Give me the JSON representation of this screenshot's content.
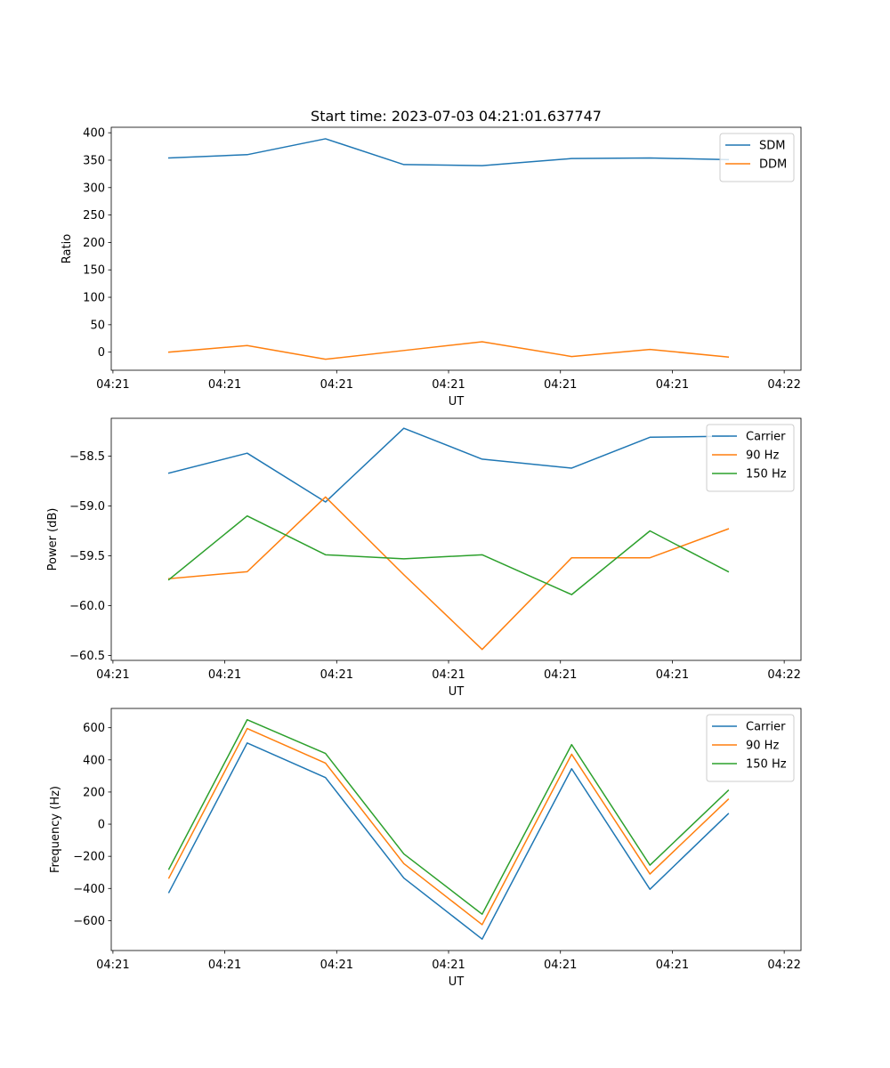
{
  "title": "Start time: 2023-07-03 04:21:01.637747",
  "x_tick_labels": [
    "04:21",
    "04:21",
    "04:21",
    "04:21",
    "04:21",
    "04:21",
    "04:22"
  ],
  "chart_data": [
    {
      "type": "line",
      "xlabel": "UT",
      "ylabel": "Ratio",
      "x": [
        0.5,
        1.2,
        1.9,
        2.6,
        3.3,
        4.1,
        4.8,
        5.5
      ],
      "xlim": [
        -0.015,
        6.15
      ],
      "ylim": [
        -33,
        410
      ],
      "yticks": [
        0,
        50,
        100,
        150,
        200,
        250,
        300,
        350,
        400
      ],
      "ytick_labels": [
        "0",
        "50",
        "100",
        "150",
        "200",
        "250",
        "300",
        "350",
        "400"
      ],
      "legend_position": "upper right",
      "series": [
        {
          "name": "SDM",
          "color": "#1f77b4",
          "values": [
            354,
            360,
            389,
            342,
            340,
            353,
            354,
            351
          ]
        },
        {
          "name": "DDM",
          "color": "#ff7f0e",
          "values": [
            0,
            12,
            -13,
            3,
            19,
            -8,
            5,
            -9
          ]
        }
      ]
    },
    {
      "type": "line",
      "xlabel": "UT",
      "ylabel": "Power (dB)",
      "x": [
        0.5,
        1.2,
        1.9,
        2.6,
        3.3,
        4.1,
        4.8,
        5.5
      ],
      "xlim": [
        -0.015,
        6.15
      ],
      "ylim": [
        -60.55,
        -58.12
      ],
      "yticks": [
        -60.5,
        -60.0,
        -59.5,
        -59.0,
        -58.5
      ],
      "ytick_labels": [
        "−60.5",
        "−60.0",
        "−59.5",
        "−59.0",
        "−58.5"
      ],
      "legend_position": "upper right",
      "series": [
        {
          "name": "Carrier",
          "color": "#1f77b4",
          "values": [
            -58.67,
            -58.47,
            -58.96,
            -58.22,
            -58.53,
            -58.62,
            -58.31,
            -58.3
          ]
        },
        {
          "name": "90 Hz",
          "color": "#ff7f0e",
          "values": [
            -59.73,
            -59.66,
            -58.91,
            -59.69,
            -60.44,
            -59.52,
            -59.52,
            -59.23
          ]
        },
        {
          "name": "150 Hz",
          "color": "#2ca02c",
          "values": [
            -59.74,
            -59.1,
            -59.49,
            -59.53,
            -59.49,
            -59.89,
            -59.25,
            -59.66
          ]
        }
      ]
    },
    {
      "type": "line",
      "xlabel": "UT",
      "ylabel": "Frequency (Hz)",
      "x": [
        0.5,
        1.2,
        1.9,
        2.6,
        3.3,
        4.1,
        4.8,
        5.5
      ],
      "xlim": [
        -0.015,
        6.15
      ],
      "ylim": [
        -786,
        720
      ],
      "yticks": [
        -600,
        -400,
        -200,
        0,
        200,
        400,
        600
      ],
      "ytick_labels": [
        "−600",
        "−400",
        "−200",
        "0",
        "200",
        "400",
        "600"
      ],
      "legend_position": "upper right",
      "series": [
        {
          "name": "Carrier",
          "color": "#1f77b4",
          "values": [
            -425,
            505,
            290,
            -335,
            -715,
            345,
            -405,
            65
          ]
        },
        {
          "name": "90 Hz",
          "color": "#ff7f0e",
          "values": [
            -335,
            595,
            380,
            -245,
            -625,
            435,
            -310,
            155
          ]
        },
        {
          "name": "150 Hz",
          "color": "#2ca02c",
          "values": [
            -280,
            650,
            440,
            -185,
            -560,
            495,
            -255,
            210
          ]
        }
      ]
    }
  ]
}
